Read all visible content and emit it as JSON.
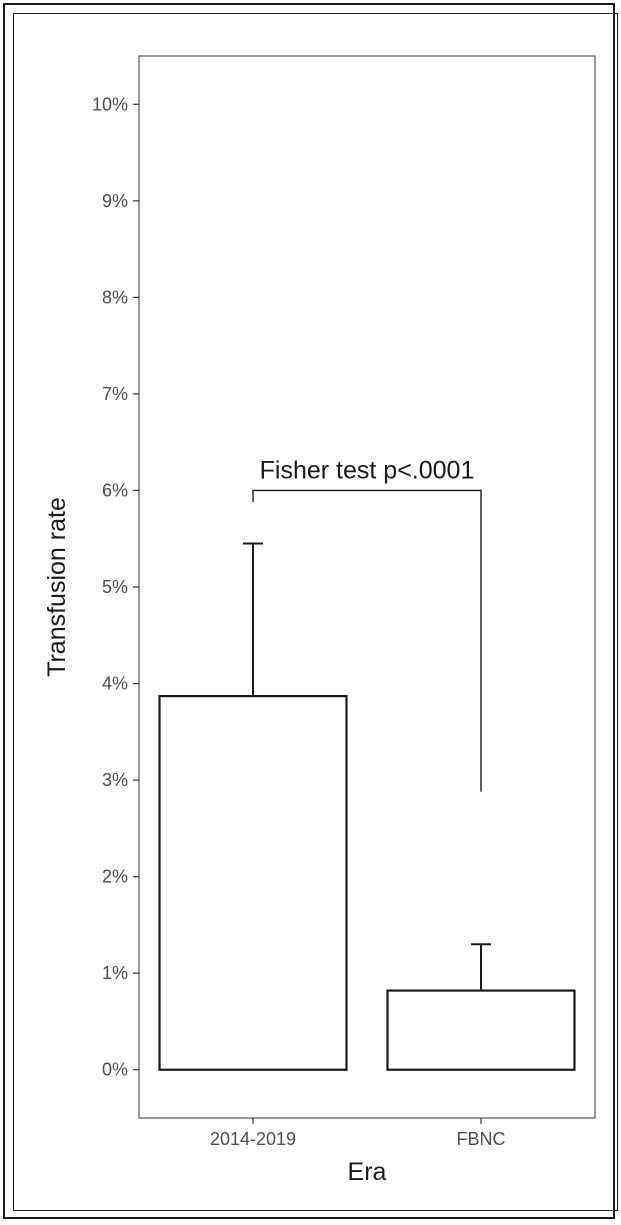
{
  "chart_data": {
    "type": "bar",
    "title": "",
    "xlabel": "Era",
    "ylabel": "Transfusion rate",
    "categories": [
      "2014-2019",
      "FBNC"
    ],
    "values": [
      3.87,
      0.82
    ],
    "error_upper": [
      5.45,
      1.3
    ],
    "ylim": [
      -0.5,
      10.5
    ],
    "yticks": [
      0,
      1,
      2,
      3,
      4,
      5,
      6,
      7,
      8,
      9,
      10
    ],
    "ytick_labels": [
      "0%",
      "1%",
      "2%",
      "3%",
      "4%",
      "5%",
      "6%",
      "7%",
      "8%",
      "9%",
      "10%"
    ],
    "y_unit": "%",
    "grid": false,
    "legend": "none",
    "annotation": {
      "text": "Fisher test p<.0001",
      "left_category": "2014-2019",
      "right_category": "FBNC",
      "bracket_y": 6.0,
      "left_end_y": 5.88,
      "right_end_y": 2.88
    },
    "colors": {
      "bar_fill": "#ffffff",
      "bar_stroke": "#1a1a1a",
      "tick_text": "#4d4d4d",
      "panel_border": "#333333"
    }
  }
}
